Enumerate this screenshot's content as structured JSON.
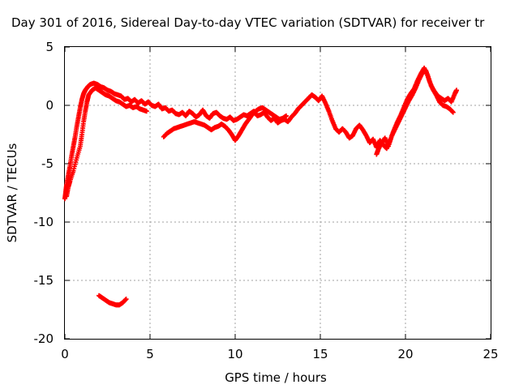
{
  "chart_data": {
    "type": "scatter",
    "title": "Day 301 of 2016, Sidereal Day-to-day VTEC variation (SDTVAR) for receiver tr",
    "xlabel": "GPS time / hours",
    "ylabel": "SDTVAR / TECUs",
    "xlim": [
      0,
      25
    ],
    "ylim": [
      -20,
      5
    ],
    "xticks": [
      0,
      5,
      10,
      15,
      20,
      25
    ],
    "yticks": [
      -20,
      -15,
      -10,
      -5,
      0,
      5
    ],
    "xtick_labels": [
      "0",
      "5",
      "10",
      "15",
      "20",
      "25"
    ],
    "ytick_labels": [
      "-20",
      "-15",
      "-10",
      "-5",
      "0",
      "5"
    ],
    "grid": true,
    "marker": "plus",
    "color": "#ff0000",
    "series": [
      {
        "points": [
          [
            0.0,
            -8.0
          ],
          [
            0.05,
            -7.4
          ],
          [
            0.1,
            -6.8
          ],
          [
            0.2,
            -6.0
          ],
          [
            0.3,
            -5.2
          ],
          [
            0.4,
            -4.3
          ],
          [
            0.5,
            -3.5
          ],
          [
            0.6,
            -2.7
          ],
          [
            0.7,
            -1.8
          ],
          [
            0.8,
            -1.0
          ],
          [
            0.9,
            -0.2
          ],
          [
            1.0,
            0.5
          ],
          [
            1.1,
            1.0
          ],
          [
            1.2,
            1.3
          ],
          [
            1.35,
            1.6
          ],
          [
            1.5,
            1.8
          ],
          [
            1.7,
            1.9
          ],
          [
            1.9,
            1.8
          ],
          [
            2.1,
            1.6
          ],
          [
            2.3,
            1.5
          ],
          [
            2.5,
            1.3
          ],
          [
            2.7,
            1.2
          ],
          [
            2.9,
            1.0
          ],
          [
            3.1,
            0.9
          ],
          [
            3.3,
            0.8
          ],
          [
            3.5,
            0.5
          ],
          [
            3.7,
            0.6
          ],
          [
            3.9,
            0.3
          ],
          [
            4.1,
            0.5
          ],
          [
            4.3,
            0.2
          ],
          [
            4.5,
            0.4
          ],
          [
            4.7,
            0.1
          ],
          [
            4.9,
            0.3
          ],
          [
            5.1,
            0.0
          ],
          [
            5.3,
            -0.1
          ],
          [
            5.5,
            0.1
          ],
          [
            5.7,
            -0.3
          ],
          [
            5.9,
            -0.2
          ],
          [
            6.1,
            -0.5
          ],
          [
            6.3,
            -0.4
          ],
          [
            6.5,
            -0.7
          ],
          [
            6.7,
            -0.8
          ],
          [
            6.9,
            -0.6
          ],
          [
            7.1,
            -0.9
          ],
          [
            7.3,
            -0.5
          ],
          [
            7.5,
            -0.7
          ],
          [
            7.7,
            -1.0
          ],
          [
            7.9,
            -0.8
          ],
          [
            8.1,
            -0.4
          ],
          [
            8.3,
            -0.9
          ],
          [
            8.5,
            -1.1
          ],
          [
            8.7,
            -0.7
          ],
          [
            8.9,
            -0.6
          ],
          [
            9.1,
            -0.9
          ],
          [
            9.3,
            -1.1
          ],
          [
            9.5,
            -1.2
          ],
          [
            9.7,
            -1.0
          ],
          [
            9.9,
            -1.3
          ],
          [
            10.1,
            -1.2
          ],
          [
            10.3,
            -1.0
          ],
          [
            10.5,
            -0.8
          ],
          [
            10.7,
            -0.9
          ],
          [
            10.9,
            -0.7
          ],
          [
            11.1,
            -0.5
          ],
          [
            11.3,
            -0.9
          ],
          [
            11.5,
            -0.8
          ],
          [
            11.7,
            -0.6
          ],
          [
            11.9,
            -1.0
          ],
          [
            12.1,
            -1.3
          ],
          [
            12.3,
            -1.1
          ],
          [
            12.5,
            -1.5
          ],
          [
            12.7,
            -1.3
          ],
          [
            12.9,
            -1.2
          ],
          [
            13.1,
            -1.4
          ],
          [
            13.3,
            -1.0
          ],
          [
            13.5,
            -0.7
          ],
          [
            13.7,
            -0.3
          ],
          [
            13.9,
            0.0
          ],
          [
            14.1,
            0.3
          ],
          [
            14.3,
            0.6
          ],
          [
            14.5,
            0.9
          ],
          [
            14.7,
            0.7
          ],
          [
            14.9,
            0.4
          ],
          [
            15.1,
            0.8
          ],
          [
            15.3,
            0.2
          ],
          [
            15.5,
            -0.5
          ],
          [
            15.7,
            -1.3
          ],
          [
            15.9,
            -2.0
          ],
          [
            16.1,
            -2.3
          ],
          [
            16.3,
            -2.0
          ],
          [
            16.5,
            -2.3
          ],
          [
            16.7,
            -2.8
          ],
          [
            16.9,
            -2.6
          ],
          [
            17.1,
            -2.0
          ],
          [
            17.3,
            -1.7
          ],
          [
            17.5,
            -2.1
          ],
          [
            17.7,
            -2.6
          ],
          [
            17.9,
            -3.2
          ],
          [
            18.1,
            -2.9
          ],
          [
            18.3,
            -3.6
          ],
          [
            18.5,
            -3.0
          ],
          [
            18.7,
            -3.4
          ],
          [
            18.9,
            -3.7
          ],
          [
            19.1,
            -3.0
          ],
          [
            19.3,
            -2.2
          ],
          [
            19.5,
            -1.5
          ],
          [
            19.7,
            -0.9
          ],
          [
            19.9,
            -0.2
          ],
          [
            20.1,
            0.5
          ],
          [
            20.3,
            1.0
          ],
          [
            20.5,
            1.4
          ],
          [
            20.7,
            2.1
          ],
          [
            20.9,
            2.7
          ],
          [
            21.1,
            3.2
          ],
          [
            21.3,
            2.6
          ],
          [
            21.5,
            1.7
          ],
          [
            21.7,
            1.2
          ],
          [
            21.9,
            0.8
          ],
          [
            22.1,
            0.6
          ],
          [
            22.3,
            0.4
          ],
          [
            22.5,
            0.6
          ],
          [
            22.7,
            0.3
          ],
          [
            22.9,
            1.0
          ],
          [
            23.0,
            1.3
          ]
        ]
      },
      {
        "points": [
          [
            0.1,
            -7.8
          ],
          [
            0.2,
            -7.0
          ],
          [
            0.3,
            -6.5
          ],
          [
            0.5,
            -5.6
          ],
          [
            0.7,
            -4.5
          ],
          [
            0.9,
            -3.5
          ],
          [
            1.0,
            -2.5
          ],
          [
            1.1,
            -1.4
          ],
          [
            1.2,
            -0.5
          ],
          [
            1.3,
            0.3
          ],
          [
            1.4,
            0.9
          ],
          [
            1.6,
            1.3
          ],
          [
            1.8,
            1.5
          ],
          [
            2.0,
            1.3
          ],
          [
            2.2,
            1.1
          ],
          [
            2.4,
            0.9
          ],
          [
            2.6,
            0.8
          ],
          [
            2.8,
            0.6
          ],
          [
            3.0,
            0.4
          ],
          [
            3.2,
            0.3
          ],
          [
            3.4,
            0.1
          ],
          [
            3.6,
            -0.1
          ],
          [
            3.8,
            0.0
          ],
          [
            4.0,
            -0.2
          ],
          [
            4.2,
            -0.1
          ],
          [
            4.4,
            -0.3
          ],
          [
            4.6,
            -0.4
          ],
          [
            4.8,
            -0.5
          ]
        ]
      },
      {
        "points": [
          [
            5.8,
            -2.7
          ],
          [
            6.0,
            -2.4
          ],
          [
            6.2,
            -2.2
          ],
          [
            6.4,
            -2.0
          ],
          [
            6.6,
            -1.9
          ],
          [
            6.8,
            -1.8
          ],
          [
            7.0,
            -1.7
          ],
          [
            7.2,
            -1.6
          ],
          [
            7.4,
            -1.5
          ],
          [
            7.6,
            -1.4
          ],
          [
            7.8,
            -1.5
          ],
          [
            8.0,
            -1.6
          ],
          [
            8.2,
            -1.7
          ],
          [
            8.4,
            -1.9
          ],
          [
            8.6,
            -2.1
          ],
          [
            8.8,
            -1.9
          ],
          [
            9.0,
            -1.8
          ],
          [
            9.2,
            -1.6
          ],
          [
            9.4,
            -1.8
          ],
          [
            9.6,
            -2.1
          ],
          [
            9.8,
            -2.5
          ],
          [
            10.0,
            -3.0
          ],
          [
            10.2,
            -2.6
          ],
          [
            10.4,
            -2.1
          ],
          [
            10.6,
            -1.6
          ],
          [
            10.8,
            -1.2
          ],
          [
            11.0,
            -0.8
          ],
          [
            11.2,
            -0.5
          ],
          [
            11.4,
            -0.3
          ],
          [
            11.6,
            -0.2
          ],
          [
            11.8,
            -0.4
          ],
          [
            12.0,
            -0.6
          ],
          [
            12.2,
            -0.8
          ],
          [
            12.4,
            -1.0
          ],
          [
            12.6,
            -1.2
          ],
          [
            12.8,
            -1.1
          ],
          [
            13.0,
            -0.9
          ]
        ]
      },
      {
        "points": [
          [
            18.3,
            -4.2
          ],
          [
            18.4,
            -3.8
          ],
          [
            18.6,
            -3.2
          ],
          [
            18.8,
            -2.8
          ],
          [
            19.0,
            -3.5
          ],
          [
            19.2,
            -2.6
          ],
          [
            19.4,
            -2.0
          ],
          [
            19.6,
            -1.4
          ],
          [
            19.8,
            -0.8
          ],
          [
            20.0,
            -0.2
          ],
          [
            20.2,
            0.4
          ],
          [
            20.4,
            0.9
          ],
          [
            20.6,
            1.5
          ],
          [
            20.8,
            2.2
          ],
          [
            21.0,
            2.8
          ],
          [
            21.2,
            3.0
          ],
          [
            21.4,
            2.1
          ],
          [
            21.6,
            1.4
          ],
          [
            21.8,
            0.9
          ],
          [
            22.0,
            0.3
          ],
          [
            22.2,
            0.0
          ],
          [
            22.4,
            -0.1
          ],
          [
            22.6,
            -0.3
          ],
          [
            22.8,
            -0.6
          ]
        ]
      },
      {
        "points": [
          [
            2.0,
            -16.3
          ],
          [
            2.2,
            -16.5
          ],
          [
            2.4,
            -16.7
          ],
          [
            2.6,
            -16.9
          ],
          [
            2.8,
            -17.0
          ],
          [
            3.0,
            -17.1
          ],
          [
            3.2,
            -17.1
          ],
          [
            3.4,
            -16.9
          ],
          [
            3.6,
            -16.6
          ]
        ]
      }
    ]
  }
}
